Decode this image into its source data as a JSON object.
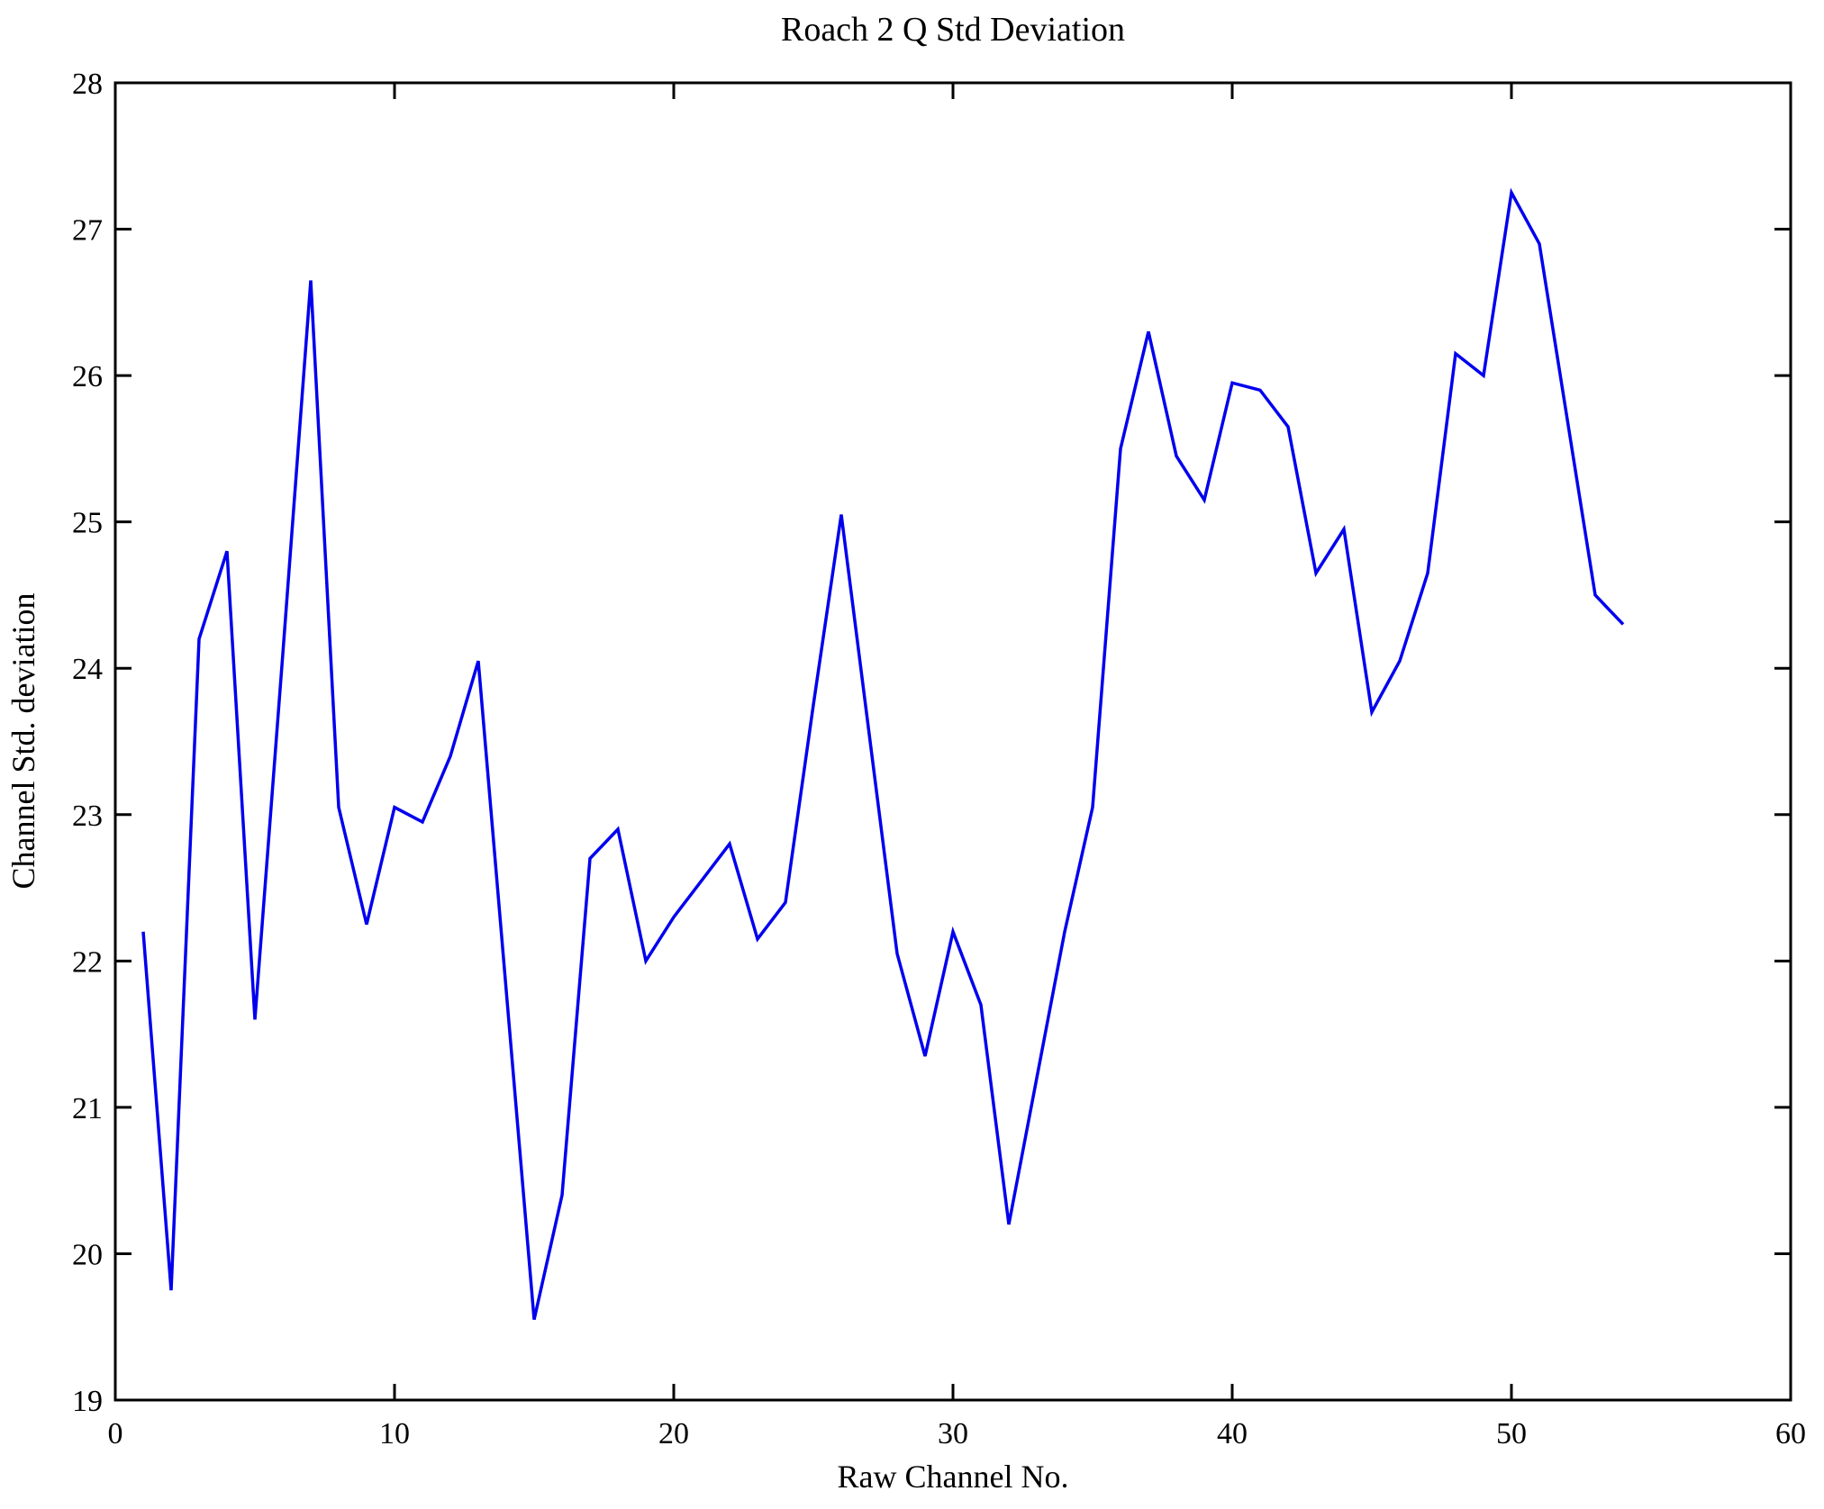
{
  "figure": {
    "background_color": "#ffffff",
    "axis_color": "#000000"
  },
  "chart_data": {
    "type": "line",
    "title": "Roach 2 Q Std Deviation",
    "xlabel": "Raw Channel No.",
    "ylabel": "Channel Std. deviation",
    "xlim": [
      0,
      60
    ],
    "ylim": [
      19,
      28
    ],
    "xticks": [
      0,
      10,
      20,
      30,
      40,
      50,
      60
    ],
    "yticks": [
      19,
      20,
      21,
      22,
      23,
      24,
      25,
      26,
      27,
      28
    ],
    "grid": false,
    "legend": false,
    "line_color": "#0000ee",
    "x": [
      1,
      2,
      3,
      4,
      5,
      6,
      7,
      8,
      9,
      10,
      11,
      12,
      13,
      14,
      15,
      16,
      17,
      18,
      19,
      20,
      21,
      22,
      23,
      24,
      25,
      26,
      27,
      28,
      29,
      30,
      31,
      32,
      33,
      34,
      35,
      36,
      37,
      38,
      39,
      40,
      41,
      42,
      43,
      44,
      45,
      46,
      47,
      48,
      49,
      50,
      51,
      52,
      53,
      54
    ],
    "y": [
      22.2,
      19.75,
      24.2,
      24.8,
      21.6,
      24.1,
      26.65,
      23.05,
      22.25,
      23.05,
      22.95,
      23.4,
      24.05,
      21.8,
      19.55,
      20.4,
      22.7,
      22.9,
      22.0,
      22.3,
      22.55,
      22.8,
      22.15,
      22.4,
      23.75,
      25.05,
      23.55,
      22.05,
      21.35,
      22.2,
      21.7,
      20.2,
      21.2,
      22.2,
      23.05,
      25.5,
      26.3,
      25.45,
      25.15,
      25.95,
      25.9,
      25.65,
      24.65,
      24.95,
      23.7,
      24.05,
      24.65,
      26.15,
      26.0,
      27.25,
      26.9,
      25.7,
      24.5,
      24.3
    ]
  }
}
